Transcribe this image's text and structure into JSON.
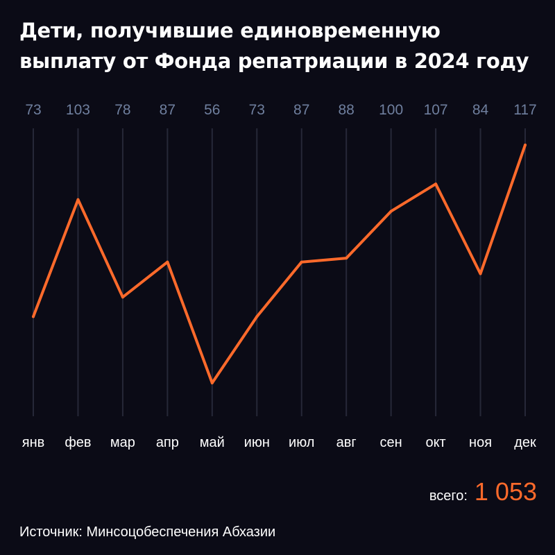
{
  "title_lines": [
    "Дети, получившие единовременную",
    "выплату от Фонда репатриации в 2024 году"
  ],
  "total": {
    "label": "всего:",
    "value": "1 053"
  },
  "source": "Источник: Минсоцобеспечения Абхазии",
  "colors": {
    "background": "#0b0b16",
    "line": "#ff6a2b",
    "value_labels": "#6f7f9e",
    "grid": "#262838",
    "month_labels": "#ffffff"
  },
  "chart_data": {
    "type": "line",
    "categories": [
      "янв",
      "фев",
      "мар",
      "апр",
      "май",
      "июн",
      "июл",
      "авг",
      "сен",
      "окт",
      "ноя",
      "дек"
    ],
    "values": [
      73,
      103,
      78,
      87,
      56,
      73,
      87,
      88,
      100,
      107,
      84,
      117
    ],
    "value_labels": [
      "73",
      "103",
      "78",
      "87",
      "56",
      "73",
      "87",
      "88",
      "100",
      "107",
      "84",
      "117"
    ],
    "grid": true
  }
}
